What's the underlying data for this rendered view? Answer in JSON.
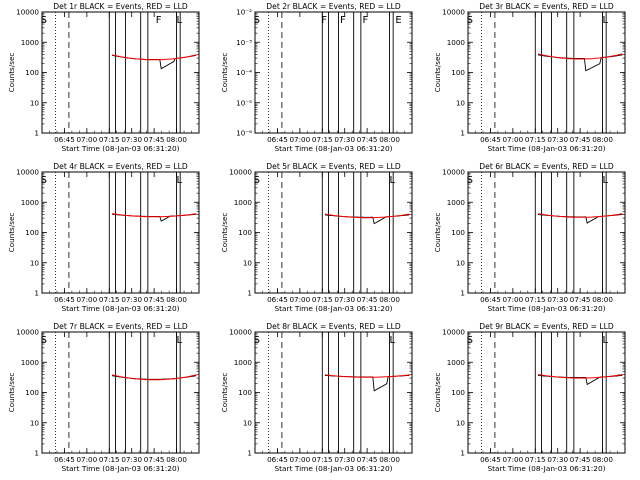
{
  "chart_data": [
    {
      "type": "line",
      "title": "Det 1r BLACK = Events, RED = LLD",
      "xlabel": "Start Time (08-Jan-03 06:31:20)",
      "ylabel": "Counts/sec",
      "yscale": "log",
      "ylim": [
        1,
        10000
      ],
      "xlim_minutes": [
        6.5,
        8.25
      ],
      "x_ticks": [
        "06:45",
        "07:00",
        "07:15",
        "07:30",
        "07:45",
        "08:00"
      ],
      "y_ticks": [
        "1",
        "10",
        "100",
        "1000",
        "10000"
      ],
      "markers": [
        {
          "letter": "S",
          "time": 6.52
        },
        {
          "letter": "F",
          "time": 7.8
        },
        {
          "letter": "L",
          "time": 8.03
        }
      ],
      "series": [
        {
          "color": "#000000",
          "style": "events",
          "t0": 7.28,
          "t1": 8.22,
          "base": 300,
          "bump_amp": 0.14,
          "dip_start": 7.82,
          "dip_end": 7.97,
          "dip_val": 130
        },
        {
          "color": "#ff0000",
          "style": "lld",
          "t0": 7.28,
          "t1": 8.22,
          "base": 300,
          "bump_amp": 0.16
        }
      ]
    },
    {
      "type": "line",
      "title": "Det 2r BLACK = Events, RED = LLD",
      "xlabel": "Start Time (08-Jan-03 06:31:20)",
      "ylabel": "Counts/sec",
      "yscale": "log",
      "ylim": [
        1e-06,
        0.01
      ],
      "x_ticks": [
        "06:45",
        "07:00",
        "07:15",
        "07:30",
        "07:45",
        "08:00"
      ],
      "y_ticks": [
        "10⁻⁶",
        "10⁻⁵",
        "10⁻⁴",
        "10⁻³",
        "10⁻²"
      ],
      "markers": [
        {
          "letter": "S",
          "time": 6.52
        },
        {
          "letter": "F",
          "time": 7.27
        },
        {
          "letter": "F",
          "time": 7.48
        },
        {
          "letter": "F",
          "time": 7.73
        },
        {
          "letter": "E",
          "time": 8.1
        }
      ],
      "series": []
    },
    {
      "type": "line",
      "title": "Det 3r BLACK = Events, RED = LLD",
      "xlabel": "Start Time (08-Jan-03 06:31:20)",
      "ylabel": "Counts/sec",
      "yscale": "log",
      "ylim": [
        1,
        10000
      ],
      "x_ticks": [
        "06:45",
        "07:00",
        "07:15",
        "07:30",
        "07:45",
        "08:00"
      ],
      "y_ticks": [
        "1",
        "10",
        "100",
        "1000",
        "10000"
      ],
      "markers": [
        {
          "letter": "S",
          "time": 6.52
        },
        {
          "letter": "L",
          "time": 8.03
        }
      ],
      "series": [
        {
          "color": "#000000",
          "style": "events",
          "t0": 7.28,
          "t1": 8.22,
          "base": 320,
          "bump_amp": 0.12,
          "dip_start": 7.8,
          "dip_end": 7.97,
          "dip_val": 110
        },
        {
          "color": "#ff0000",
          "style": "lld",
          "t0": 7.28,
          "t1": 8.22,
          "base": 320,
          "bump_amp": 0.17
        }
      ]
    },
    {
      "type": "line",
      "title": "Det 4r BLACK = Events, RED = LLD",
      "xlabel": "Start Time (08-Jan-03 06:31:20)",
      "ylabel": "Counts/sec",
      "yscale": "log",
      "ylim": [
        1,
        10000
      ],
      "x_ticks": [
        "06:45",
        "07:00",
        "07:15",
        "07:30",
        "07:45",
        "08:00"
      ],
      "y_ticks": [
        "1",
        "10",
        "100",
        "1000",
        "10000"
      ],
      "markers": [
        {
          "letter": "S",
          "time": 6.52
        },
        {
          "letter": "L",
          "time": 8.03
        }
      ],
      "series": [
        {
          "color": "#000000",
          "style": "events",
          "t0": 7.28,
          "t1": 8.22,
          "base": 360,
          "bump_amp": 0.07,
          "dip_start": 7.82,
          "dip_end": 7.97,
          "dip_val": 230
        },
        {
          "color": "#ff0000",
          "style": "lld",
          "t0": 7.28,
          "t1": 8.22,
          "base": 360,
          "bump_amp": 0.1
        }
      ]
    },
    {
      "type": "line",
      "title": "Det 5r BLACK = Events, RED = LLD",
      "xlabel": "Start Time (08-Jan-03 06:31:20)",
      "ylabel": "Counts/sec",
      "yscale": "log",
      "ylim": [
        1,
        10000
      ],
      "x_ticks": [
        "06:45",
        "07:00",
        "07:15",
        "07:30",
        "07:45",
        "08:00"
      ],
      "y_ticks": [
        "1",
        "10",
        "100",
        "1000",
        "10000"
      ],
      "markers": [
        {
          "letter": "S",
          "time": 6.52
        },
        {
          "letter": "L",
          "time": 8.03
        }
      ],
      "series": [
        {
          "color": "#000000",
          "style": "events",
          "t0": 7.28,
          "t1": 8.22,
          "base": 340,
          "bump_amp": 0.08,
          "dip_start": 7.82,
          "dip_end": 7.97,
          "dip_val": 190
        },
        {
          "color": "#ff0000",
          "style": "lld",
          "t0": 7.28,
          "t1": 8.22,
          "base": 340,
          "bump_amp": 0.12
        }
      ]
    },
    {
      "type": "line",
      "title": "Det 6r BLACK = Events, RED = LLD",
      "xlabel": "Start Time (08-Jan-03 06:31:20)",
      "ylabel": "Counts/sec",
      "yscale": "log",
      "ylim": [
        1,
        10000
      ],
      "x_ticks": [
        "06:45",
        "07:00",
        "07:15",
        "07:30",
        "07:45",
        "08:00"
      ],
      "y_ticks": [
        "1",
        "10",
        "100",
        "1000",
        "10000"
      ],
      "markers": [
        {
          "letter": "S",
          "time": 6.52
        },
        {
          "letter": "L",
          "time": 8.03
        }
      ],
      "series": [
        {
          "color": "#000000",
          "style": "events",
          "t0": 7.28,
          "t1": 8.22,
          "base": 350,
          "bump_amp": 0.08,
          "dip_start": 7.82,
          "dip_end": 7.97,
          "dip_val": 200
        },
        {
          "color": "#ff0000",
          "style": "lld",
          "t0": 7.28,
          "t1": 8.22,
          "base": 350,
          "bump_amp": 0.12
        }
      ]
    },
    {
      "type": "line",
      "title": "Det 7r BLACK = Events, RED = LLD",
      "xlabel": "Start Time (08-Jan-03 06:31:20)",
      "ylabel": "Counts/sec",
      "yscale": "log",
      "ylim": [
        1,
        10000
      ],
      "x_ticks": [
        "06:45",
        "07:00",
        "07:15",
        "07:30",
        "07:45",
        "08:00"
      ],
      "y_ticks": [
        "1",
        "10",
        "100",
        "1000",
        "10000"
      ],
      "markers": [
        {
          "letter": "S",
          "time": 6.52
        },
        {
          "letter": "L",
          "time": 8.03
        }
      ],
      "series": [
        {
          "color": "#000000",
          "style": "events",
          "t0": 7.28,
          "t1": 8.22,
          "base": 300,
          "bump_amp": 0.12,
          "dip_start": 0,
          "dip_end": 0,
          "dip_val": 300
        },
        {
          "color": "#ff0000",
          "style": "lld",
          "t0": 7.28,
          "t1": 8.22,
          "base": 300,
          "bump_amp": 0.16
        }
      ]
    },
    {
      "type": "line",
      "title": "Det 8r BLACK = Events, RED = LLD",
      "xlabel": "Start Time (08-Jan-03 06:31:20)",
      "ylabel": "Counts/sec",
      "yscale": "log",
      "ylim": [
        1,
        10000
      ],
      "x_ticks": [
        "06:45",
        "07:00",
        "07:15",
        "07:30",
        "07:45",
        "08:00"
      ],
      "y_ticks": [
        "1",
        "10",
        "100",
        "1000",
        "10000"
      ],
      "markers": [
        {
          "letter": "S",
          "time": 6.52
        },
        {
          "letter": "L",
          "time": 8.03
        }
      ],
      "series": [
        {
          "color": "#000000",
          "style": "events",
          "t0": 7.28,
          "t1": 8.22,
          "base": 340,
          "bump_amp": 0.05,
          "dip_start": 7.82,
          "dip_end": 7.97,
          "dip_val": 110
        },
        {
          "color": "#ff0000",
          "style": "lld",
          "t0": 7.28,
          "t1": 8.22,
          "base": 340,
          "bump_amp": 0.08
        }
      ]
    },
    {
      "type": "line",
      "title": "Det 9r BLACK = Events, RED = LLD",
      "xlabel": "Start Time (08-Jan-03 06:31:20)",
      "ylabel": "Counts/sec",
      "yscale": "log",
      "ylim": [
        1,
        10000
      ],
      "x_ticks": [
        "06:45",
        "07:00",
        "07:15",
        "07:30",
        "07:45",
        "08:00"
      ],
      "y_ticks": [
        "1",
        "10",
        "100",
        "1000",
        "10000"
      ],
      "markers": [
        {
          "letter": "S",
          "time": 6.52
        },
        {
          "letter": "L",
          "time": 8.03
        }
      ],
      "series": [
        {
          "color": "#000000",
          "style": "events",
          "t0": 7.28,
          "t1": 8.22,
          "base": 330,
          "bump_amp": 0.07,
          "dip_start": 7.82,
          "dip_end": 7.97,
          "dip_val": 180
        },
        {
          "color": "#ff0000",
          "style": "lld",
          "t0": 7.28,
          "t1": 8.22,
          "base": 330,
          "bump_amp": 0.12
        }
      ]
    }
  ],
  "vlines": {
    "dotted_time": 6.65,
    "dashed_time": 6.8,
    "solid_times": [
      7.25,
      7.32,
      7.43,
      7.6,
      7.68,
      8.0,
      8.04
    ]
  },
  "colors": {
    "events": "#000000",
    "lld": "#ff0000",
    "axis": "#000000",
    "background": "#ffffff"
  }
}
